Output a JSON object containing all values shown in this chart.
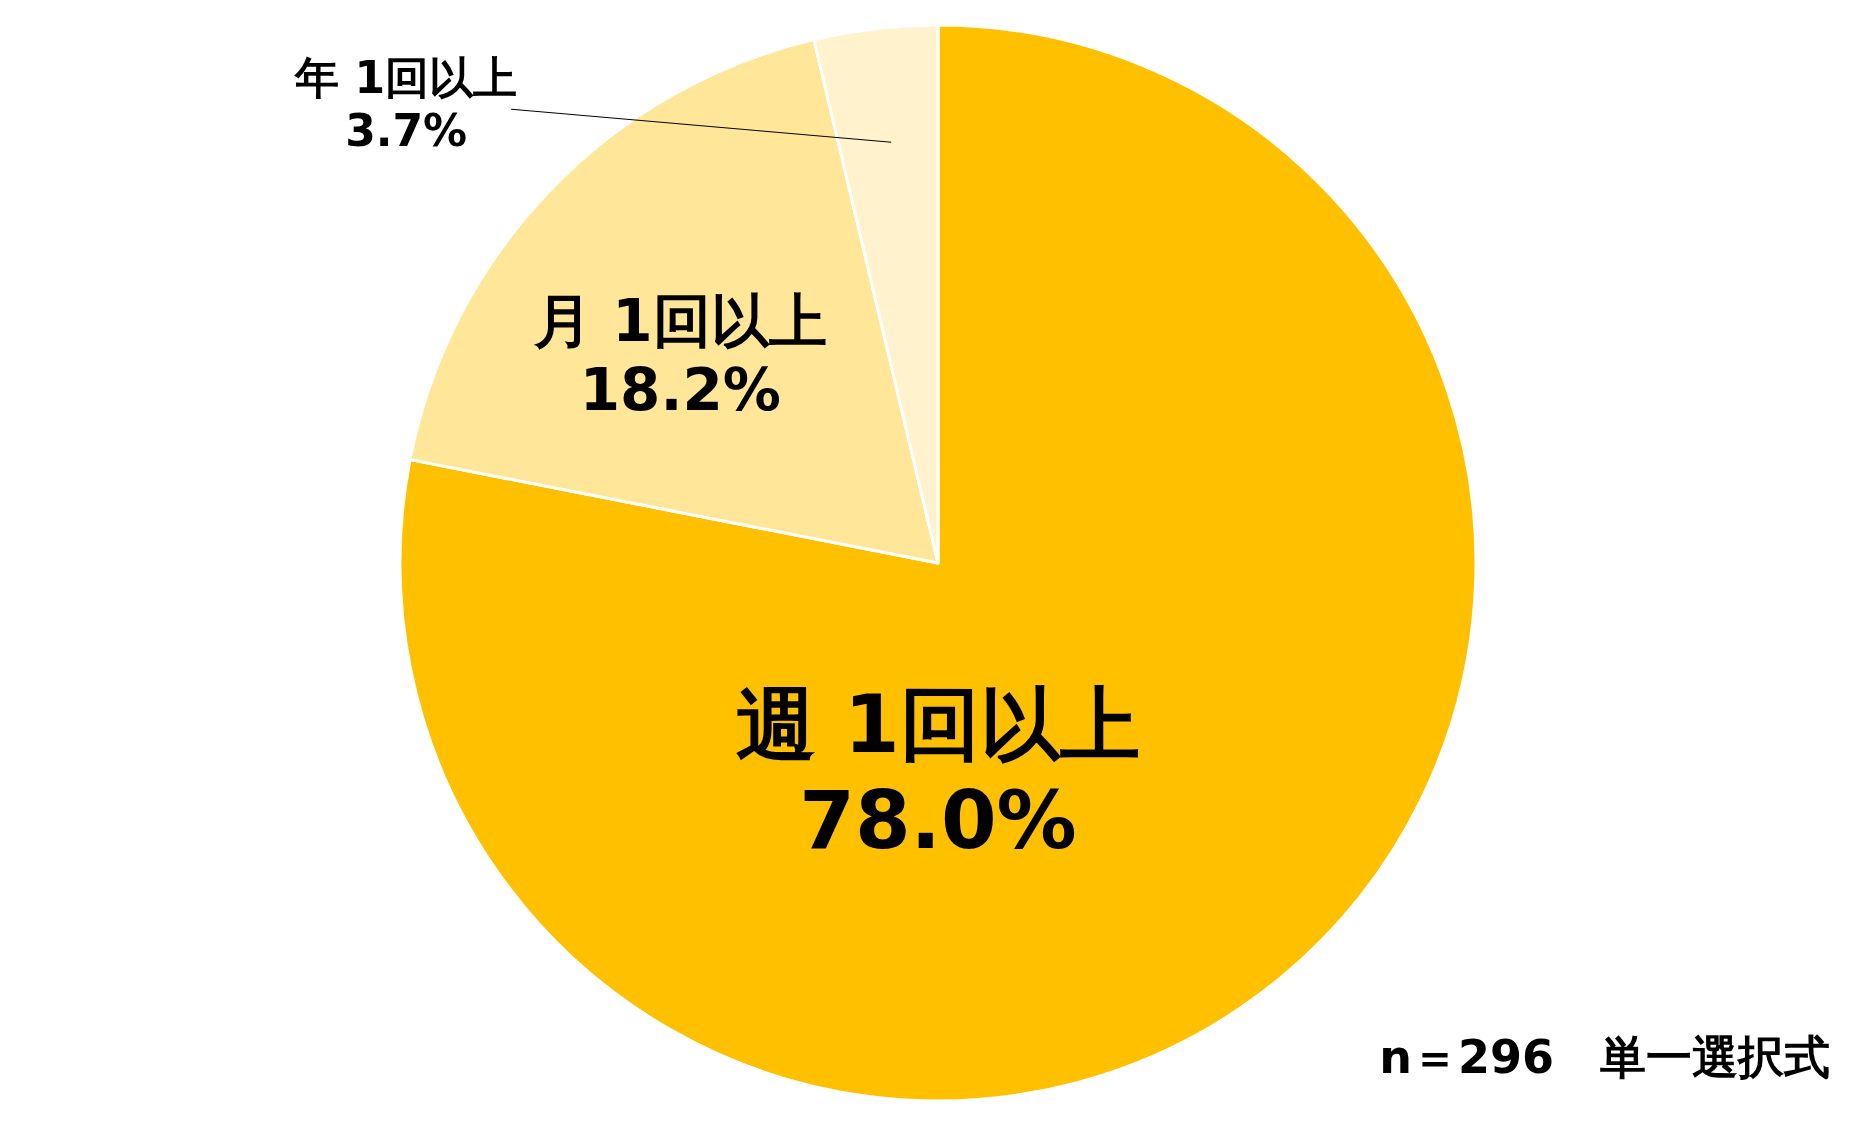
{
  "chart_data": {
    "type": "pie",
    "categories": [
      "週 1回以上",
      "月 1回以上",
      "年 1回以上"
    ],
    "values": [
      78.0,
      18.2,
      3.7
    ],
    "value_labels": [
      "78.0%",
      "18.2%",
      "3.7%"
    ],
    "colors": [
      "#ffc000",
      "#ffe699",
      "#fff2cc"
    ],
    "annotations": [
      "n＝296　単一選択式"
    ]
  }
}
